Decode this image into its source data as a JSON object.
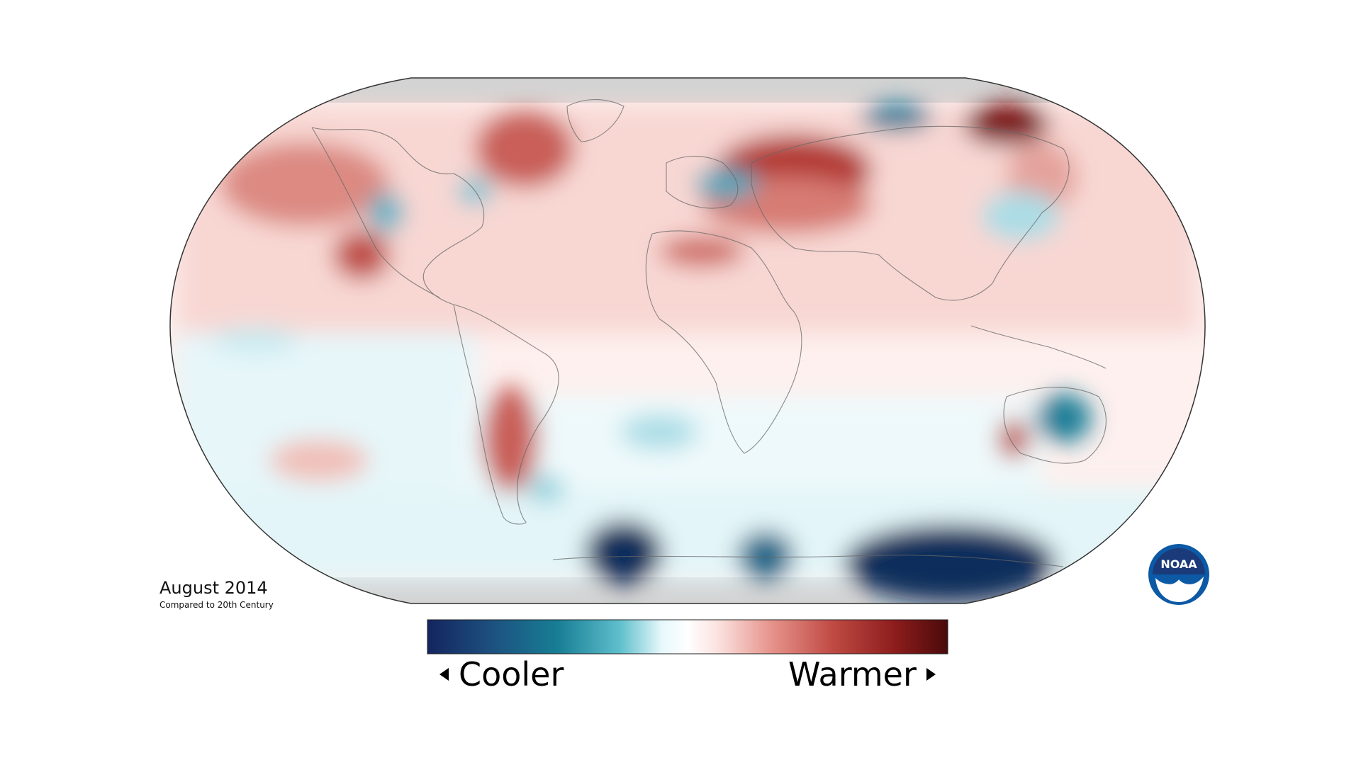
{
  "map": {
    "projection": "Robinson",
    "title": "August 2014",
    "subtitle": "Compared to 20th Century",
    "legend": {
      "cool_label": "Cooler",
      "warm_label": "Warmer",
      "gradient_colors": [
        "#13255e",
        "#1d4f7e",
        "#177e95",
        "#5fbfcc",
        "#e6f8fb",
        "#ffffff",
        "#fbe1de",
        "#e6948c",
        "#bf4a43",
        "#8c1c1c",
        "#4a0a0a"
      ]
    },
    "anomaly_colors": {
      "warm_light": "#f6d3cf",
      "warm_mid": "#dd837a",
      "warm_strong": "#b33a36",
      "warm_dark": "#7a1416",
      "cool_light": "#d9f2f6",
      "cool_mid": "#5fb4c6",
      "cool_strong": "#1b6e8c",
      "cool_dark": "#0f2d5c",
      "neutral": "#ffffff",
      "nodata": "#d3d3d3"
    },
    "logo": {
      "text": "NOAA",
      "icon": "noaa-logo-icon",
      "color": "#0c5aa6"
    }
  }
}
